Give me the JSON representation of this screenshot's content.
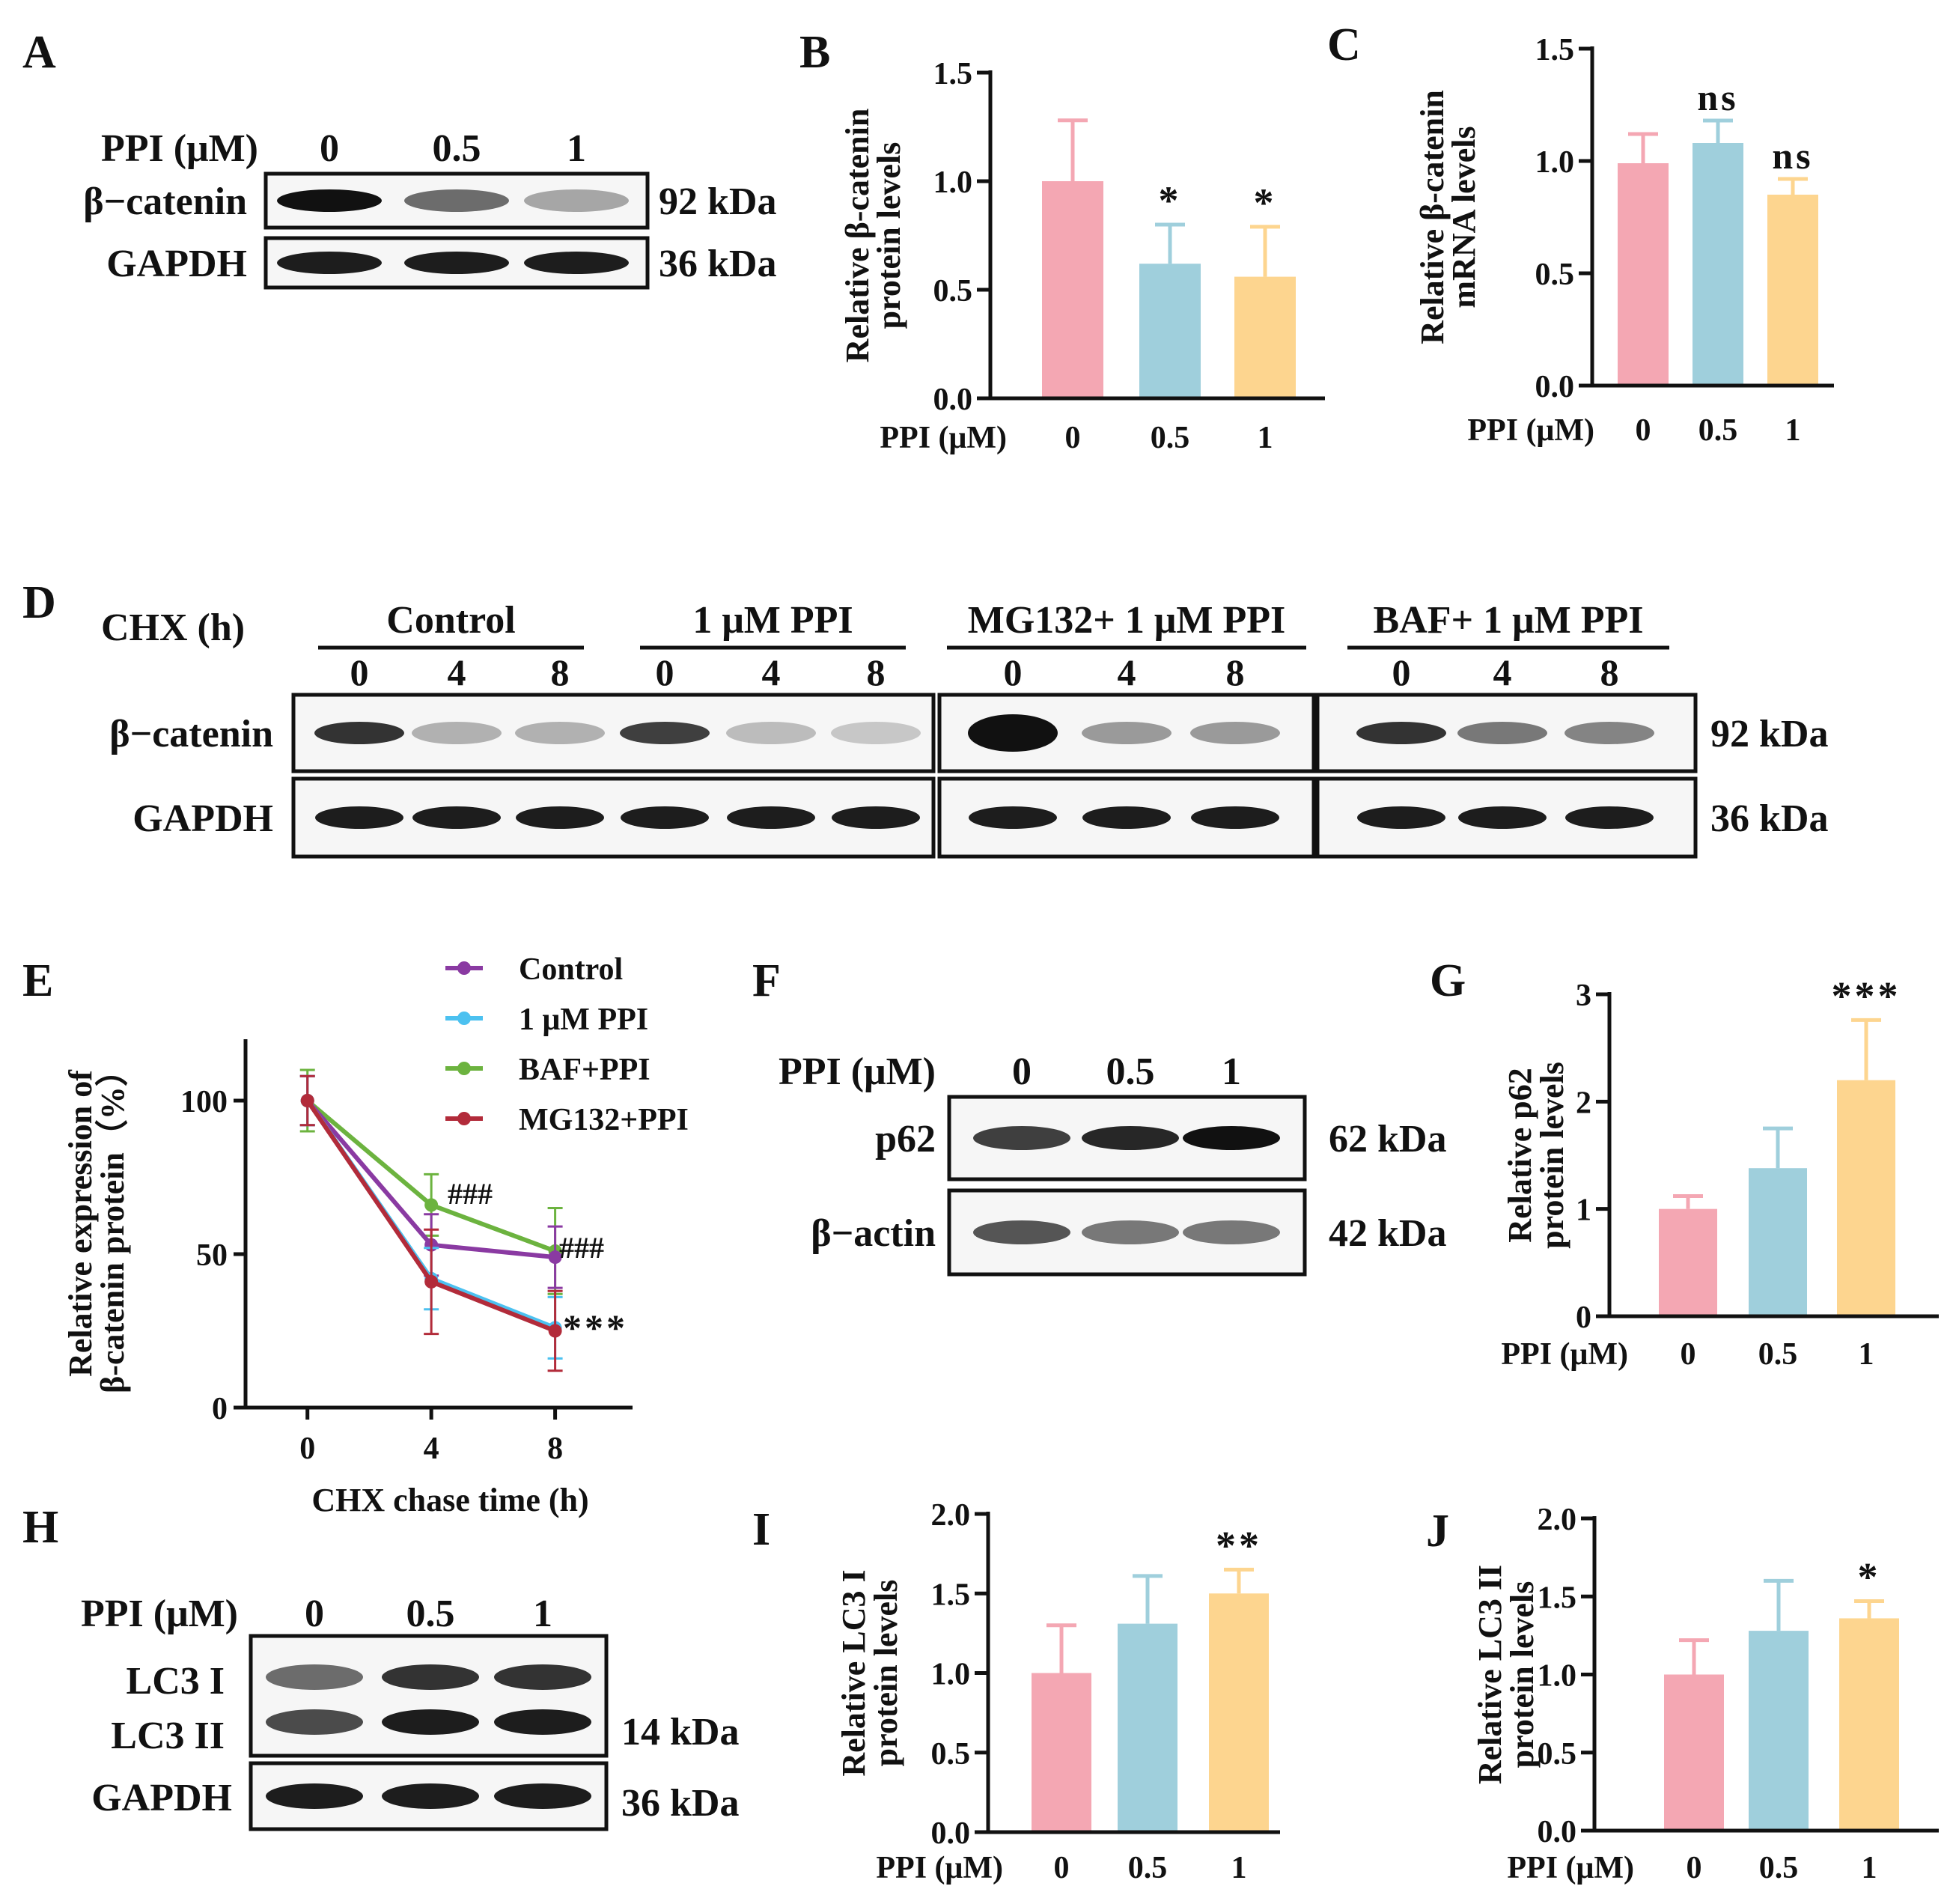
{
  "colors": {
    "bar": [
      "#f4a7b3",
      "#9fcfdc",
      "#fdd58f"
    ],
    "error": [
      "#f4a7b3",
      "#9fcfdc",
      "#fdd58f"
    ],
    "axis": "#111111",
    "line": {
      "Control": "#8a3aa2",
      "1 μM PPI": "#4cc1f0",
      "BAF+PPI": "#6cb33f",
      "MG132+PPI": "#b22b3a"
    }
  },
  "panels": {
    "A": {
      "letter": "A",
      "treatment_label": "PPI (μM)",
      "lanes": [
        "0",
        "0.5",
        "1"
      ],
      "rows": [
        {
          "label": "β−catenin",
          "size": "92 kDa",
          "intensity": [
            1.0,
            0.6,
            0.35
          ]
        },
        {
          "label": "GAPDH",
          "size": "36 kDa",
          "intensity": [
            0.95,
            0.95,
            0.95
          ]
        }
      ]
    },
    "D": {
      "letter": "D",
      "time_label": "CHX (h)",
      "groups": [
        {
          "name": "Control",
          "times": [
            "0",
            "4",
            "8"
          ]
        },
        {
          "name": "1 μM PPI",
          "times": [
            "0",
            "4",
            "8"
          ]
        },
        {
          "name": "MG132+ 1 μM PPI",
          "times": [
            "0",
            "4",
            "8"
          ]
        },
        {
          "name": "BAF+ 1 μM PPI",
          "times": [
            "0",
            "4",
            "8"
          ]
        }
      ],
      "rows": [
        {
          "label": "β−catenin",
          "size": "92 kDa",
          "intensity": [
            0.85,
            0.3,
            0.3,
            0.8,
            0.25,
            0.2,
            1.0,
            0.4,
            0.4,
            0.85,
            0.55,
            0.5
          ]
        },
        {
          "label": "GAPDH",
          "size": "36 kDa",
          "intensity": [
            0.95,
            0.95,
            0.95,
            0.95,
            0.95,
            0.95,
            0.95,
            0.95,
            0.95,
            0.95,
            0.95,
            0.95
          ]
        }
      ]
    },
    "F": {
      "letter": "F",
      "treatment_label": "PPI (μM)",
      "lanes": [
        "0",
        "0.5",
        "1"
      ],
      "rows": [
        {
          "label": "p62",
          "size": "62 kDa",
          "intensity": [
            0.8,
            0.9,
            1.0
          ]
        },
        {
          "label": "β−actin",
          "size": "42 kDa",
          "intensity": [
            0.7,
            0.55,
            0.55
          ]
        }
      ]
    },
    "H": {
      "letter": "H",
      "treatment_label": "PPI (μM)",
      "lanes": [
        "0",
        "0.5",
        "1"
      ],
      "band_labels": [
        "LC3 I",
        "LC3 II"
      ],
      "size_lc3": "14 kDa",
      "loading": {
        "label": "GAPDH",
        "size": "36 kDa"
      },
      "lc3_intensity": [
        [
          0.6,
          0.85,
          0.85
        ],
        [
          0.75,
          0.95,
          0.95
        ]
      ]
    }
  },
  "chart_data": [
    {
      "panel": "B",
      "type": "bar",
      "ylabel_lines": [
        "Relative β-catenin",
        "protein levels"
      ],
      "xlabel": "PPI (μM)",
      "categories": [
        "0",
        "0.5",
        "1"
      ],
      "values": [
        1.0,
        0.62,
        0.56
      ],
      "errors": [
        0.28,
        0.18,
        0.23
      ],
      "sig": [
        "",
        "*",
        "*"
      ],
      "ylim": [
        0,
        1.5
      ],
      "yticks": [
        "0.0",
        "0.5",
        "1.0",
        "1.5"
      ]
    },
    {
      "panel": "C",
      "type": "bar",
      "ylabel_lines": [
        "Relative β-catenin",
        "mRNA levels"
      ],
      "xlabel": "PPI (μM)",
      "categories": [
        "0",
        "0.5",
        "1"
      ],
      "values": [
        0.99,
        1.08,
        0.85
      ],
      "errors": [
        0.13,
        0.1,
        0.07
      ],
      "sig": [
        "",
        "ns",
        "ns"
      ],
      "ylim": [
        0,
        1.5
      ],
      "yticks": [
        "0.0",
        "0.5",
        "1.0",
        "1.5"
      ]
    },
    {
      "panel": "E",
      "type": "line",
      "ylabel_lines": [
        "Relative expression of",
        "β-catenin protein（%）"
      ],
      "xlabel": "CHX chase time (h)",
      "x": [
        0,
        4,
        8
      ],
      "xticks": [
        "0",
        "4",
        "8"
      ],
      "ylim": [
        0,
        120
      ],
      "yticks": [
        "0",
        "50",
        "100"
      ],
      "xlim": [
        -2,
        10.5
      ],
      "series": [
        {
          "name": "Control",
          "values": [
            100,
            53,
            49
          ],
          "errors": [
            8,
            10,
            10
          ]
        },
        {
          "name": "1 μM PPI",
          "values": [
            100,
            42,
            26
          ],
          "errors": [
            8,
            10,
            10
          ]
        },
        {
          "name": "BAF+PPI",
          "values": [
            100,
            66,
            51
          ],
          "errors": [
            10,
            10,
            14
          ]
        },
        {
          "name": "MG132+PPI",
          "values": [
            100,
            41,
            25
          ],
          "errors": [
            8,
            17,
            13
          ]
        }
      ],
      "annotations": [
        "###",
        "###",
        "***"
      ]
    },
    {
      "panel": "G",
      "type": "bar",
      "ylabel_lines": [
        "Relative p62",
        "protein levels"
      ],
      "xlabel": "PPI (μM)",
      "categories": [
        "0",
        "0.5",
        "1"
      ],
      "values": [
        1.0,
        1.38,
        2.2
      ],
      "errors": [
        0.12,
        0.37,
        0.56
      ],
      "sig": [
        "",
        "",
        "***"
      ],
      "ylim": [
        0,
        3
      ],
      "yticks": [
        "0",
        "1",
        "2",
        "3"
      ]
    },
    {
      "panel": "I",
      "type": "bar",
      "ylabel_lines": [
        "Relative LC3 I",
        "protein levels"
      ],
      "xlabel": "PPI (μM)",
      "categories": [
        "0",
        "0.5",
        "1"
      ],
      "values": [
        1.0,
        1.31,
        1.5
      ],
      "errors": [
        0.3,
        0.3,
        0.15
      ],
      "sig": [
        "",
        "",
        "**"
      ],
      "ylim": [
        0,
        2
      ],
      "yticks": [
        "0.0",
        "0.5",
        "1.0",
        "1.5",
        "2.0"
      ]
    },
    {
      "panel": "J",
      "type": "bar",
      "ylabel_lines": [
        "Relative LC3 II",
        "protein levels"
      ],
      "xlabel": "PPI (μM)",
      "categories": [
        "0",
        "0.5",
        "1"
      ],
      "values": [
        1.0,
        1.28,
        1.36
      ],
      "errors": [
        0.22,
        0.32,
        0.11
      ],
      "sig": [
        "",
        "",
        "*"
      ],
      "ylim": [
        0,
        2
      ],
      "yticks": [
        "0.0",
        "0.5",
        "1.0",
        "1.5",
        "2.0"
      ]
    }
  ]
}
